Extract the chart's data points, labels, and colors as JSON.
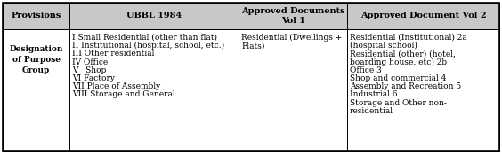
{
  "figsize": [
    5.64,
    1.74
  ],
  "dpi": 100,
  "header_bg": "#c8c8c8",
  "cell_bg": "#ffffff",
  "border_color": "#000000",
  "text_color": "#000000",
  "font_family": "DejaVu Serif",
  "header_fontsize": 7.0,
  "cell_fontsize": 6.5,
  "headers": [
    "Provisions",
    "UBBL 1984",
    "Approved Documents\nVol 1",
    "Approved Document Vol 2"
  ],
  "col0_label": "Designation\nof Purpose\nGroup",
  "col1_lines": [
    "I Small Residential (other than flat)",
    "II Institutional (hospital, school, etc.)",
    "III Other residential",
    "IV Office",
    "V   Shop",
    "VI Factory",
    "VII Place of Assembly",
    "VIII Storage and General"
  ],
  "col2_lines": [
    "Residential (Dwellings +",
    "Flats)"
  ],
  "col3_lines": [
    "Residential (Institutional) 2a",
    "(hospital school)",
    "Residential (other) (hotel,",
    "boarding house, etc) 2b",
    "Office 3",
    "Shop and commercial 4",
    "Assembly and Recreation 5",
    "Industrial 6",
    "Storage and Other non-",
    "residential"
  ]
}
